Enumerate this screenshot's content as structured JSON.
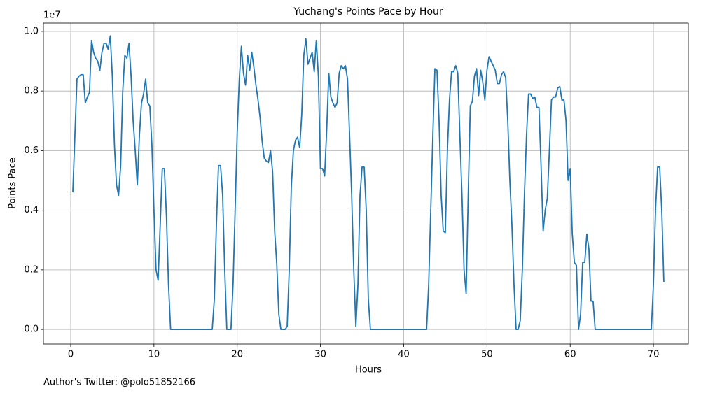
{
  "chart_data": {
    "type": "line",
    "title": "Yuchang's Points Pace by Hour",
    "x_label": "Hours",
    "y_label": "Points Pace",
    "y_offset_label": "1e7",
    "footnote": "Author's Twitter: @polo51852166",
    "grid": true,
    "xlim": [
      -3.28,
      74.2
    ],
    "ylim": [
      -0.049,
      1.028
    ],
    "xticks": [
      0,
      10,
      20,
      30,
      40,
      50,
      60,
      70
    ],
    "yticks": [
      {
        "value": 0,
        "label": "0.0"
      },
      0.2,
      0.4,
      0.6,
      0.8,
      {
        "value": 1,
        "label": "1.0"
      }
    ],
    "x": [
      0.25,
      0.5,
      0.75,
      1.0,
      1.25,
      1.5,
      1.75,
      2.0,
      2.25,
      2.5,
      2.75,
      3.0,
      3.25,
      3.5,
      3.75,
      4.0,
      4.25,
      4.5,
      4.75,
      5.0,
      5.25,
      5.5,
      5.75,
      6.0,
      6.25,
      6.5,
      6.75,
      7.0,
      7.25,
      7.5,
      7.75,
      8.0,
      8.25,
      8.5,
      8.75,
      9.0,
      9.25,
      9.5,
      9.75,
      10.0,
      10.25,
      10.5,
      10.75,
      11.0,
      11.25,
      11.5,
      11.75,
      12.0,
      17.0,
      17.25,
      17.5,
      17.75,
      18.0,
      18.25,
      18.5,
      18.75,
      19.25,
      19.5,
      19.75,
      20.0,
      20.25,
      20.5,
      20.75,
      21.0,
      21.25,
      21.5,
      21.75,
      22.0,
      22.25,
      22.5,
      22.75,
      23.0,
      23.25,
      23.5,
      23.75,
      24.0,
      24.25,
      24.5,
      24.75,
      25.0,
      25.25,
      25.75,
      26.0,
      26.25,
      26.5,
      26.75,
      27.0,
      27.25,
      27.5,
      27.75,
      28.0,
      28.25,
      28.5,
      28.75,
      29.0,
      29.25,
      29.5,
      29.75,
      30.0,
      30.25,
      30.5,
      30.75,
      31.0,
      31.25,
      31.5,
      31.75,
      32.0,
      32.25,
      32.5,
      32.75,
      33.0,
      33.25,
      33.5,
      33.75,
      34.0,
      34.25,
      34.5,
      34.75,
      35.0,
      35.25,
      35.5,
      35.75,
      36.0,
      42.75,
      43.0,
      43.25,
      43.5,
      43.75,
      44.0,
      44.25,
      44.5,
      44.75,
      45.0,
      45.25,
      45.5,
      45.75,
      46.0,
      46.25,
      46.5,
      46.75,
      47.0,
      47.25,
      47.5,
      47.75,
      48.0,
      48.25,
      48.5,
      48.75,
      49.0,
      49.25,
      49.5,
      49.75,
      50.0,
      50.25,
      50.5,
      50.75,
      51.0,
      51.25,
      51.5,
      51.75,
      52.0,
      52.25,
      52.5,
      52.75,
      53.0,
      53.25,
      53.5,
      53.75,
      54.0,
      54.25,
      54.5,
      54.75,
      55.0,
      55.25,
      55.5,
      55.75,
      56.0,
      56.25,
      56.5,
      56.75,
      57.0,
      57.25,
      57.5,
      57.75,
      58.0,
      58.25,
      58.5,
      58.75,
      59.0,
      59.25,
      59.5,
      59.75,
      60.0,
      60.25,
      60.5,
      60.75,
      61.0,
      61.25,
      61.5,
      61.75,
      62.0,
      62.25,
      62.5,
      62.75,
      63.0,
      69.75,
      70.0,
      70.25,
      70.5,
      70.75,
      71.0,
      71.25
    ],
    "series": [
      {
        "color": "#1f77b4",
        "values": [
          0.46,
          0.65,
          0.84,
          0.85,
          0.855,
          0.855,
          0.76,
          0.78,
          0.795,
          0.97,
          0.93,
          0.91,
          0.9,
          0.87,
          0.93,
          0.96,
          0.96,
          0.94,
          0.985,
          0.85,
          0.62,
          0.485,
          0.45,
          0.55,
          0.8,
          0.92,
          0.91,
          0.96,
          0.85,
          0.7,
          0.6,
          0.485,
          0.65,
          0.76,
          0.79,
          0.84,
          0.76,
          0.75,
          0.62,
          0.4,
          0.2,
          0.165,
          0.35,
          0.54,
          0.54,
          0.38,
          0.15,
          0,
          0,
          0.1,
          0.35,
          0.55,
          0.55,
          0.45,
          0.2,
          0,
          0,
          0.15,
          0.4,
          0.66,
          0.84,
          0.95,
          0.86,
          0.82,
          0.92,
          0.87,
          0.93,
          0.88,
          0.82,
          0.77,
          0.71,
          0.63,
          0.575,
          0.565,
          0.56,
          0.6,
          0.53,
          0.33,
          0.22,
          0.05,
          0,
          0,
          0.01,
          0.2,
          0.48,
          0.6,
          0.635,
          0.645,
          0.61,
          0.72,
          0.92,
          0.975,
          0.89,
          0.91,
          0.93,
          0.865,
          0.97,
          0.85,
          0.54,
          0.54,
          0.515,
          0.67,
          0.86,
          0.78,
          0.76,
          0.745,
          0.76,
          0.86,
          0.885,
          0.875,
          0.885,
          0.84,
          0.65,
          0.45,
          0.2,
          0.01,
          0.15,
          0.45,
          0.545,
          0.545,
          0.4,
          0.1,
          0,
          0,
          0.15,
          0.4,
          0.65,
          0.875,
          0.87,
          0.7,
          0.45,
          0.33,
          0.325,
          0.6,
          0.77,
          0.865,
          0.865,
          0.885,
          0.86,
          0.65,
          0.45,
          0.2,
          0.12,
          0.45,
          0.75,
          0.765,
          0.85,
          0.875,
          0.785,
          0.87,
          0.83,
          0.77,
          0.87,
          0.915,
          0.9,
          0.885,
          0.87,
          0.825,
          0.825,
          0.855,
          0.865,
          0.845,
          0.7,
          0.5,
          0.35,
          0.15,
          0,
          0,
          0.03,
          0.2,
          0.45,
          0.65,
          0.79,
          0.79,
          0.775,
          0.78,
          0.745,
          0.745,
          0.55,
          0.33,
          0.4,
          0.44,
          0.6,
          0.77,
          0.78,
          0.78,
          0.81,
          0.815,
          0.77,
          0.77,
          0.7,
          0.5,
          0.54,
          0.32,
          0.225,
          0.215,
          0,
          0.05,
          0.225,
          0.225,
          0.32,
          0.27,
          0.095,
          0.095,
          0,
          0,
          0.15,
          0.4,
          0.545,
          0.545,
          0.4,
          0.16
        ]
      }
    ]
  }
}
